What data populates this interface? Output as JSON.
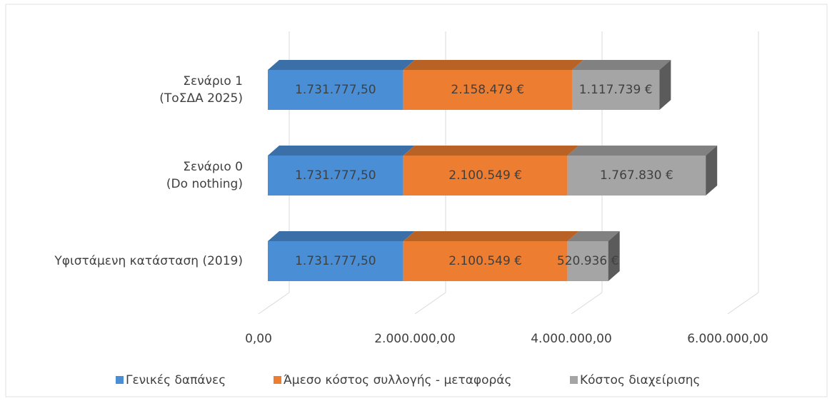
{
  "chart_data": {
    "type": "bar3d_stacked_horizontal",
    "categories": [
      [
        "Υφιστάμενη κατάσταση (2019)"
      ],
      [
        "Σενάριο 0",
        "(Do nothing)"
      ],
      [
        "Σενάριο 1",
        "(ΤοΣΔΑ 2025)"
      ]
    ],
    "series": [
      {
        "name": "Γενικές δαπάνες",
        "color": "#4a8fd6",
        "values": [
          1731777.5,
          1731777.5,
          1731777.5
        ],
        "value_labels": [
          "1.731.777,50",
          "1.731.777,50",
          "1.731.777,50"
        ]
      },
      {
        "name": "Άμεσο κόστος συλλογής - μεταφοράς",
        "color": "#ed7d31",
        "values": [
          2100549,
          2100549,
          2158479
        ],
        "value_labels": [
          "2.100.549 €",
          "2.100.549 €",
          "2.158.479 €"
        ]
      },
      {
        "name": "Κόστος διαχείρισης",
        "color": "#a5a5a5",
        "values": [
          520936,
          1767830,
          1117739
        ],
        "value_labels": [
          "520.936 €",
          "1.767.830 €",
          "1.117.739 €"
        ]
      }
    ],
    "xlim": [
      0,
      6000000
    ],
    "xticks": [
      {
        "value": 0,
        "label": "0,00"
      },
      {
        "value": 2000000,
        "label": "2.000.000,00"
      },
      {
        "value": 4000000,
        "label": "4.000.000,00"
      },
      {
        "value": 6000000,
        "label": "6.000.000,00"
      }
    ],
    "grid": true,
    "legend": "bottom"
  }
}
